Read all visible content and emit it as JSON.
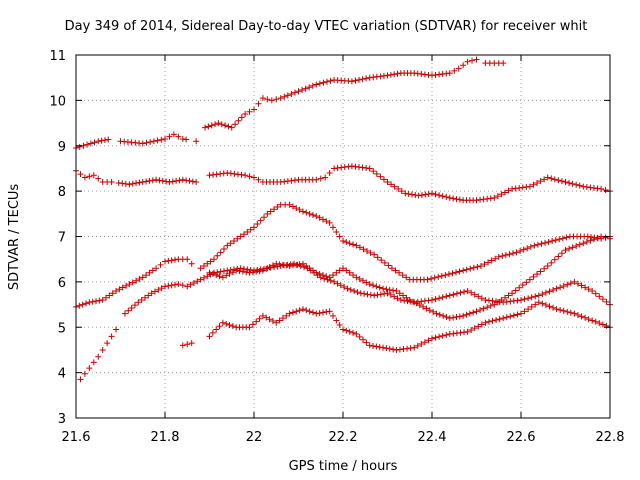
{
  "chart_data": {
    "type": "scatter",
    "title": "Day 349 of 2014, Sidereal Day-to-day VTEC variation (SDTVAR) for receiver whit",
    "xlabel": "GPS time / hours",
    "ylabel": "SDTVAR / TECUs",
    "xlim": [
      21.6,
      22.8
    ],
    "ylim": [
      3,
      11
    ],
    "xticks": [
      "21.6",
      "21.8",
      "22",
      "22.2",
      "22.4",
      "22.6",
      "22.8"
    ],
    "yticks": [
      "3",
      "4",
      "5",
      "6",
      "7",
      "8",
      "9",
      "10",
      "11"
    ],
    "grid": true,
    "marker": "+",
    "color": "#cc0000",
    "series": [
      {
        "name": "series-1",
        "x": [
          21.6,
          21.65,
          21.68,
          21.7,
          21.75,
          21.8,
          21.82,
          21.84,
          21.87
        ],
        "y": [
          8.95,
          9.1,
          9.15,
          9.1,
          9.05,
          9.15,
          9.25,
          9.15,
          9.1
        ],
        "gaps": [
          21.685,
          21.86
        ]
      },
      {
        "name": "series-1b",
        "x": [
          21.89,
          21.92,
          21.95,
          21.98,
          22.0,
          22.02,
          22.04,
          22.06,
          22.1,
          22.14,
          22.18,
          22.22,
          22.26,
          22.3,
          22.33,
          22.36,
          22.4,
          22.44,
          22.46,
          22.48,
          22.5
        ],
        "y": [
          9.4,
          9.5,
          9.4,
          9.7,
          9.8,
          10.05,
          10.0,
          10.05,
          10.2,
          10.35,
          10.45,
          10.42,
          10.5,
          10.55,
          10.6,
          10.6,
          10.55,
          10.6,
          10.7,
          10.85,
          10.9
        ]
      },
      {
        "name": "series-1c",
        "x": [
          22.52,
          22.54,
          22.56
        ],
        "y": [
          10.82,
          10.82,
          10.82
        ]
      },
      {
        "name": "series-2",
        "x": [
          21.6,
          21.62,
          21.64,
          21.66,
          21.68,
          21.72,
          21.75,
          21.78,
          21.81,
          21.84,
          21.87
        ],
        "y": [
          8.45,
          8.3,
          8.35,
          8.2,
          8.2,
          8.15,
          8.2,
          8.25,
          8.2,
          8.25,
          8.2
        ],
        "gaps": [
          21.69
        ]
      },
      {
        "name": "series-2b",
        "x": [
          21.9,
          21.94,
          21.98,
          22.0,
          22.02,
          22.06,
          22.1,
          22.14,
          22.16,
          22.18,
          22.22,
          22.26,
          22.3,
          22.34,
          22.37,
          22.4,
          22.44,
          22.47,
          22.5,
          22.54,
          22.58,
          22.62,
          22.66,
          22.7,
          22.74,
          22.78,
          22.8
        ],
        "y": [
          8.35,
          8.4,
          8.35,
          8.3,
          8.2,
          8.2,
          8.25,
          8.25,
          8.3,
          8.5,
          8.55,
          8.5,
          8.2,
          7.95,
          7.9,
          7.95,
          7.85,
          7.8,
          7.8,
          7.85,
          8.05,
          8.1,
          8.3,
          8.2,
          8.1,
          8.05,
          8.0
        ]
      },
      {
        "name": "series-3",
        "x": [
          21.6,
          21.63,
          21.66,
          21.69,
          21.72,
          21.75,
          21.78,
          21.8,
          21.83,
          21.85,
          21.86
        ],
        "y": [
          5.45,
          5.55,
          5.6,
          5.8,
          5.95,
          6.1,
          6.3,
          6.45,
          6.5,
          6.5,
          6.4
        ]
      },
      {
        "name": "series-3b",
        "x": [
          21.88,
          21.91,
          21.94,
          21.97,
          22.0,
          22.03,
          22.06,
          22.08,
          22.11,
          22.14,
          22.17,
          22.2,
          22.23,
          22.27,
          22.31,
          22.35,
          22.39,
          22.43,
          22.47,
          22.51,
          22.55,
          22.59,
          22.63,
          22.67,
          22.71,
          22.75,
          22.78,
          22.8
        ],
        "y": [
          6.3,
          6.5,
          6.8,
          7.0,
          7.2,
          7.5,
          7.7,
          7.7,
          7.55,
          7.45,
          7.3,
          6.9,
          6.8,
          6.6,
          6.3,
          6.05,
          6.05,
          6.15,
          6.25,
          6.35,
          6.55,
          6.65,
          6.8,
          6.9,
          7.0,
          7.0,
          6.95,
          7.0
        ]
      },
      {
        "name": "series-4",
        "x": [
          21.61,
          21.63,
          21.65,
          21.67,
          21.69
        ],
        "y": [
          3.85,
          4.1,
          4.35,
          4.65,
          4.95
        ]
      },
      {
        "name": "series-4b",
        "x": [
          21.71,
          21.74,
          21.77,
          21.8,
          21.83,
          21.85,
          21.88,
          21.91,
          21.94,
          21.97,
          22.0,
          22.03,
          22.06,
          22.09,
          22.12,
          22.15,
          22.18,
          22.21,
          22.24,
          22.27,
          22.3,
          22.33,
          22.36,
          22.4,
          22.44,
          22.48,
          22.52,
          22.56,
          22.6,
          22.64,
          22.68,
          22.72,
          22.76,
          22.8
        ],
        "y": [
          5.3,
          5.55,
          5.75,
          5.9,
          5.95,
          5.9,
          6.05,
          6.2,
          6.25,
          6.3,
          6.25,
          6.3,
          6.35,
          6.4,
          6.3,
          6.1,
          6.0,
          5.85,
          5.75,
          5.7,
          5.75,
          5.6,
          5.55,
          5.6,
          5.7,
          5.8,
          5.6,
          5.55,
          5.6,
          5.7,
          5.85,
          6.0,
          5.8,
          5.5
        ]
      },
      {
        "name": "series-5",
        "x": [
          21.84,
          21.86
        ],
        "y": [
          4.6,
          4.65
        ]
      },
      {
        "name": "series-5b",
        "x": [
          21.9,
          21.93,
          21.96,
          21.99,
          22.02,
          22.05,
          22.08,
          22.11,
          22.14,
          22.17,
          22.2,
          22.23,
          22.26,
          22.29,
          22.32,
          22.36,
          22.4,
          22.44,
          22.48,
          22.52,
          22.56,
          22.6,
          22.64,
          22.68,
          22.72,
          22.76,
          22.8
        ],
        "y": [
          4.8,
          5.1,
          5.0,
          5.0,
          5.25,
          5.1,
          5.3,
          5.4,
          5.3,
          5.35,
          4.95,
          4.85,
          4.6,
          4.55,
          4.5,
          4.55,
          4.75,
          4.85,
          4.9,
          5.1,
          5.2,
          5.3,
          5.55,
          5.4,
          5.3,
          5.15,
          5.0
        ]
      },
      {
        "name": "series-6",
        "x": [
          21.9,
          21.93,
          21.96,
          21.99,
          22.02,
          22.05,
          22.08,
          22.11,
          22.14,
          22.17,
          22.2,
          22.23,
          22.26,
          22.29,
          22.32,
          22.35,
          22.38,
          22.41,
          22.44,
          22.47,
          22.5,
          22.54,
          22.58,
          22.62,
          22.66,
          22.7,
          22.74,
          22.78,
          22.8
        ],
        "y": [
          6.2,
          6.1,
          6.25,
          6.2,
          6.25,
          6.4,
          6.35,
          6.4,
          6.2,
          6.1,
          6.3,
          6.1,
          5.95,
          5.85,
          5.8,
          5.6,
          5.45,
          5.3,
          5.2,
          5.25,
          5.35,
          5.5,
          5.75,
          6.05,
          6.35,
          6.7,
          6.85,
          7.0,
          6.95
        ]
      }
    ]
  }
}
